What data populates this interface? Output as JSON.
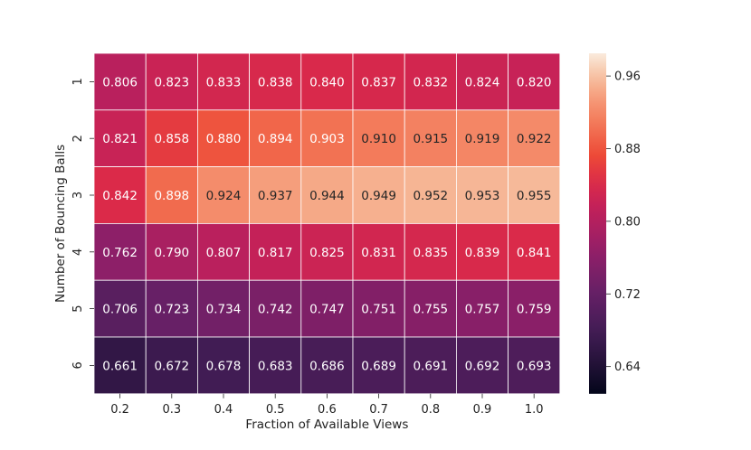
{
  "chart_data": {
    "type": "heatmap",
    "title": "",
    "xlabel": "Fraction of Available Views",
    "ylabel": "Number of Bouncing Balls",
    "x_categories": [
      "0.2",
      "0.3",
      "0.4",
      "0.5",
      "0.6",
      "0.7",
      "0.8",
      "0.9",
      "1.0"
    ],
    "y_categories": [
      "1",
      "2",
      "3",
      "4",
      "5",
      "6"
    ],
    "values": [
      [
        0.806,
        0.823,
        0.833,
        0.838,
        0.84,
        0.837,
        0.832,
        0.824,
        0.82
      ],
      [
        0.821,
        0.858,
        0.88,
        0.894,
        0.903,
        0.91,
        0.915,
        0.919,
        0.922
      ],
      [
        0.842,
        0.898,
        0.924,
        0.937,
        0.944,
        0.949,
        0.952,
        0.953,
        0.955
      ],
      [
        0.762,
        0.79,
        0.807,
        0.817,
        0.825,
        0.831,
        0.835,
        0.839,
        0.841
      ],
      [
        0.706,
        0.723,
        0.734,
        0.742,
        0.747,
        0.751,
        0.755,
        0.757,
        0.759
      ],
      [
        0.661,
        0.672,
        0.678,
        0.683,
        0.686,
        0.689,
        0.691,
        0.692,
        0.693
      ]
    ],
    "value_format": "3 decimals",
    "colormap": "rocket",
    "color_range": [
      0.61,
      0.985
    ],
    "colorbar_ticks": [
      "0.64",
      "0.72",
      "0.80",
      "0.88",
      "0.96"
    ],
    "colorbar_tick_values": [
      0.64,
      0.72,
      0.8,
      0.88,
      0.96
    ],
    "annotation_text_threshold": 0.905,
    "dark_text_color": "#262626",
    "light_text_color": "#ffffff"
  }
}
